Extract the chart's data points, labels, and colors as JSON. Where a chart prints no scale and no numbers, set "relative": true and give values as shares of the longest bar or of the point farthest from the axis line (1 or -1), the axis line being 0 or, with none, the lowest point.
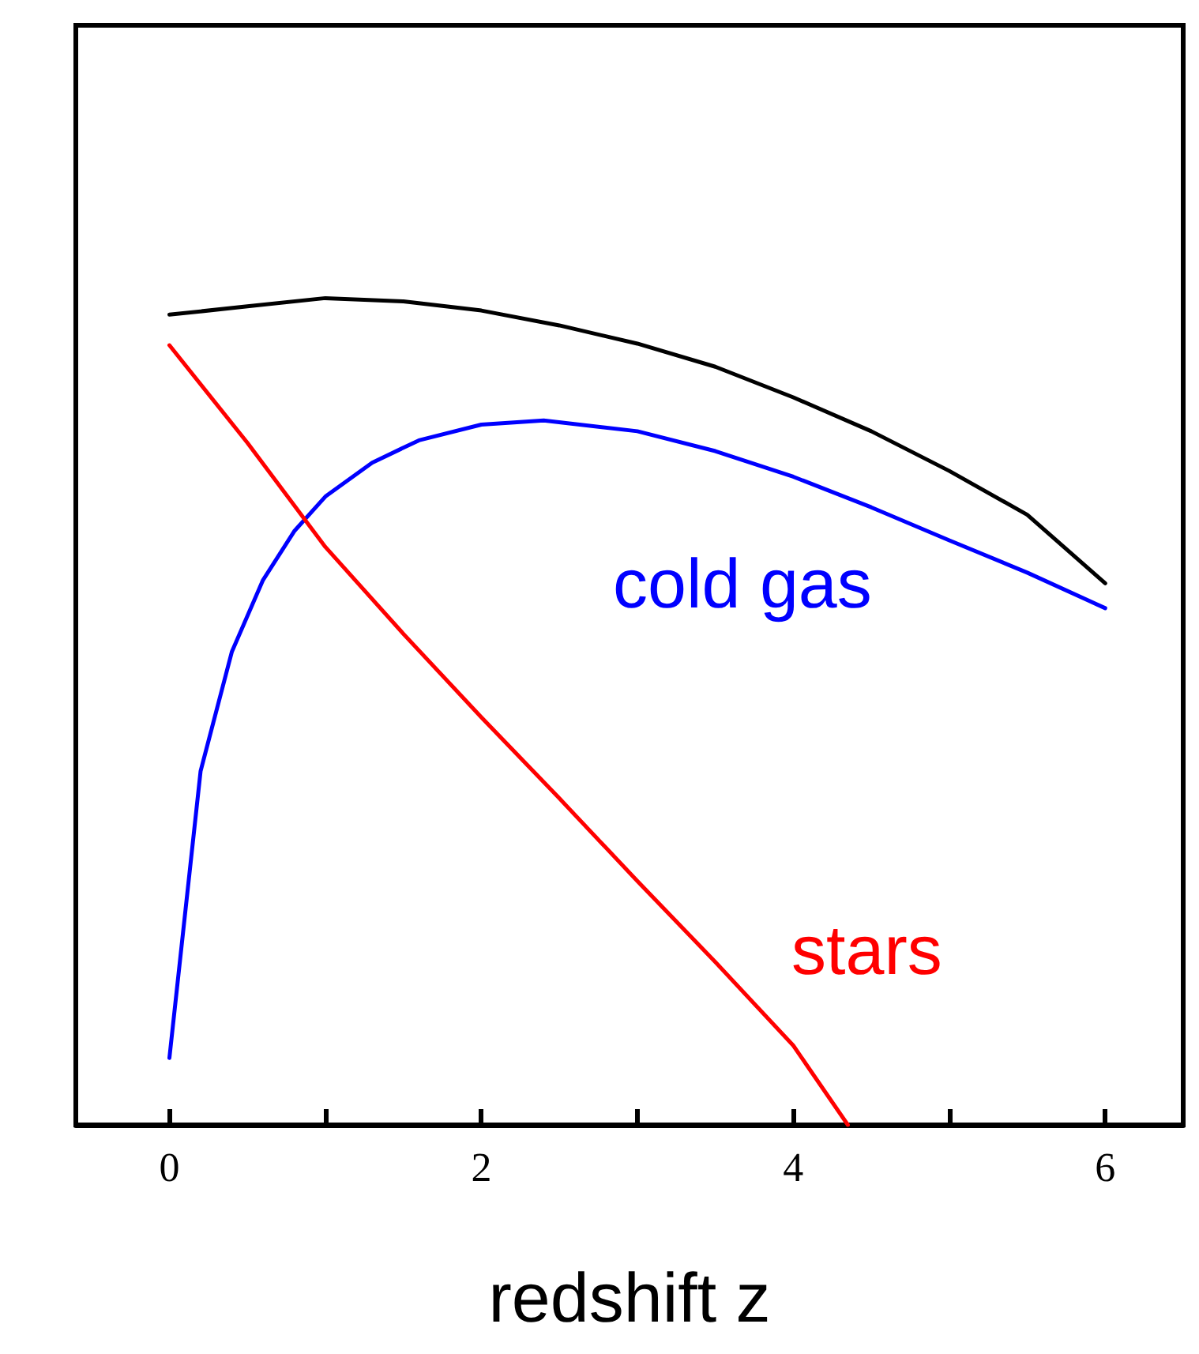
{
  "chart_data": {
    "type": "line",
    "xlabel": "redshift z",
    "relative": true,
    "xlim": [
      -0.6,
      6.5
    ],
    "xticks": [
      0,
      {
        "value": 1,
        "label": null
      },
      2,
      {
        "value": 3,
        "label": null
      },
      4,
      {
        "value": 5,
        "label": null
      },
      6
    ],
    "legend": false,
    "grid": false,
    "marker": "none",
    "line_style": "solid",
    "series": [
      {
        "color": "#000000",
        "x": [
          0,
          0.5,
          1,
          1.5,
          2,
          2.5,
          3,
          3.5,
          4,
          4.5,
          5,
          5.5,
          6
        ],
        "values": [
          0.98,
          0.99,
          1,
          0.996,
          0.985,
          0.967,
          0.945,
          0.917,
          0.88,
          0.839,
          0.791,
          0.738,
          0.655
        ]
      },
      {
        "name": "cold gas",
        "color": "#0000ff",
        "x": [
          0,
          0.2,
          0.4,
          0.6,
          0.8,
          1,
          1.3,
          1.6,
          2,
          2.4,
          3,
          3.5,
          4,
          4.5,
          5,
          5.5,
          6
        ],
        "values": [
          0.081,
          0.428,
          0.572,
          0.659,
          0.718,
          0.76,
          0.801,
          0.828,
          0.847,
          0.852,
          0.839,
          0.815,
          0.784,
          0.747,
          0.707,
          0.668,
          0.625
        ]
      },
      {
        "name": "stars",
        "color": "#ff0000",
        "x": [
          0,
          0.5,
          1,
          1.5,
          2,
          2.5,
          3,
          3.5,
          4,
          4.35
        ],
        "values": [
          0.943,
          0.825,
          0.699,
          0.594,
          0.493,
          0.395,
          0.295,
          0.197,
          0.096,
          0
        ]
      }
    ]
  }
}
